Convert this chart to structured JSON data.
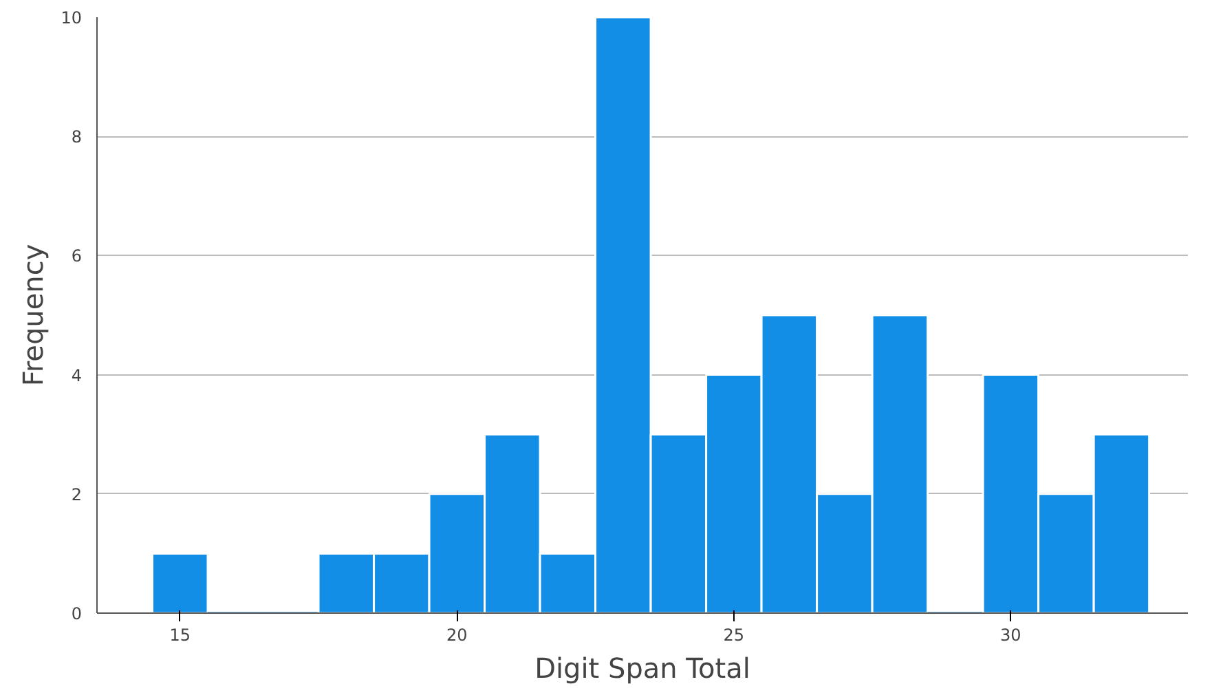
{
  "chart_data": {
    "type": "histogram",
    "xlabel": "Digit Span Total",
    "ylabel": "Frequency",
    "bins": [
      14.5,
      15.5,
      16.5,
      17.5,
      18.5,
      19.5,
      20.5,
      21.5,
      22.5,
      23.5,
      24.5,
      25.5,
      26.5,
      27.5,
      28.5,
      29.5,
      30.5,
      31.5,
      32.5
    ],
    "values": [
      1,
      0,
      0,
      1,
      1,
      2,
      3,
      1,
      10,
      3,
      4,
      5,
      2,
      5,
      0,
      4,
      2,
      3
    ],
    "color": "#128ee6",
    "xlim": [
      13.5,
      33.2
    ],
    "xticks": [
      15,
      20,
      25,
      30
    ],
    "ylim": [
      0,
      10
    ],
    "yticks": [
      0,
      2,
      4,
      6,
      8,
      10
    ],
    "grid": "y"
  }
}
